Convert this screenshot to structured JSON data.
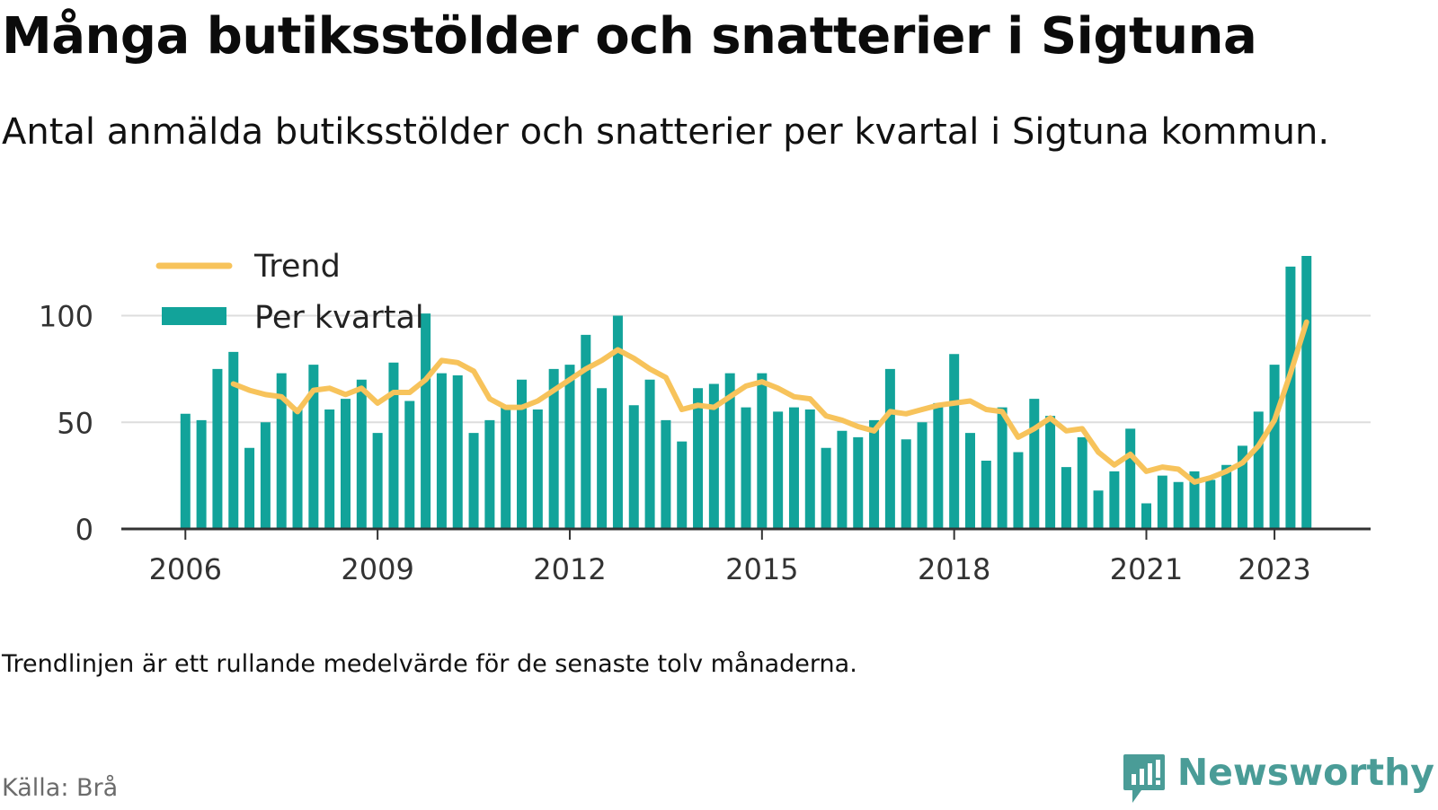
{
  "title": "Många butiksstölder och snatterier i Sigtuna",
  "subtitle": "Antal anmälda butiksstölder och snatterier per kvartal i Sigtuna kommun.",
  "footnote": "Trendlinjen är ett rullande medelvärde för de senaste tolv månaderna.",
  "source": "Källa: Brå",
  "brand": "Newsworthy",
  "colors": {
    "bars": "#12a39a",
    "trend": "#f7c35b",
    "grid": "#dddddd",
    "axis": "#333333",
    "brand": "#4a9c97"
  },
  "chart_data": {
    "type": "bar",
    "x_ticks": [
      {
        "label": "2006",
        "value": 2006.0
      },
      {
        "label": "2009",
        "value": 2009.0
      },
      {
        "label": "2012",
        "value": 2012.0
      },
      {
        "label": "2015",
        "value": 2015.0
      },
      {
        "label": "2018",
        "value": 2018.0
      },
      {
        "label": "2021",
        "value": 2021.0
      },
      {
        "label": "2023",
        "value": 2023.0
      }
    ],
    "y_ticks": [
      0,
      50,
      100
    ],
    "ylim": [
      0,
      128
    ],
    "xlim": [
      2005.0,
      2024.5
    ],
    "grid": true,
    "legend": {
      "placement": "top-left",
      "entries": [
        {
          "label": "Trend",
          "kind": "line"
        },
        {
          "label": "Per kvartal",
          "kind": "bar"
        }
      ]
    },
    "series": [
      {
        "name": "Per kvartal",
        "kind": "bar",
        "start": 2006.0,
        "step": 0.25,
        "values": [
          54,
          51,
          75,
          83,
          38,
          50,
          73,
          57,
          77,
          56,
          61,
          70,
          45,
          78,
          60,
          101,
          73,
          72,
          45,
          51,
          58,
          70,
          56,
          75,
          77,
          91,
          66,
          100,
          58,
          70,
          51,
          41,
          66,
          68,
          73,
          57,
          73,
          55,
          57,
          56,
          38,
          46,
          43,
          51,
          75,
          42,
          50,
          59,
          82,
          45,
          32,
          57,
          36,
          61,
          53,
          29,
          43,
          18,
          27,
          47,
          12,
          25,
          22,
          27,
          23,
          30,
          39,
          55,
          77,
          123,
          128
        ]
      },
      {
        "name": "Trend",
        "kind": "line",
        "start": 2006.75,
        "step": 0.25,
        "values": [
          68,
          65,
          63,
          62,
          55,
          65,
          66,
          63,
          66,
          59,
          64,
          64,
          70,
          79,
          78,
          74,
          61,
          57,
          57,
          60,
          65,
          70,
          75,
          79,
          84,
          80,
          75,
          71,
          56,
          58,
          57,
          62,
          67,
          69,
          66,
          62,
          61,
          53,
          51,
          48,
          46,
          55,
          54,
          56,
          58,
          59,
          60,
          56,
          55,
          43,
          47,
          52,
          46,
          47,
          36,
          30,
          35,
          27,
          29,
          28,
          22,
          24,
          27,
          31,
          39,
          51,
          73,
          97
        ]
      }
    ]
  }
}
